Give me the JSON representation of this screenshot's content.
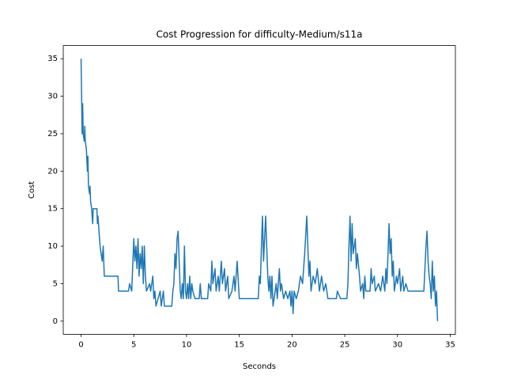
{
  "chart_data": {
    "type": "line",
    "title": "Cost Progression for difficulty-Medium/s11a",
    "x_label": "Seconds",
    "y_label": "Cost",
    "x": [
      0,
      0.05,
      0.1,
      0.15,
      0.2,
      0.3,
      0.35,
      0.4,
      0.5,
      0.6,
      0.65,
      0.7,
      0.8,
      0.85,
      0.9,
      1.0,
      1.1,
      1.15,
      1.5,
      1.55,
      1.6,
      1.7,
      1.8,
      1.9,
      2.0,
      2.1,
      2.2,
      3.5,
      3.55,
      4.5,
      4.6,
      4.8,
      5.0,
      5.1,
      5.2,
      5.3,
      5.4,
      5.5,
      5.6,
      5.7,
      5.8,
      5.9,
      6.0,
      6.1,
      6.2,
      6.5,
      6.6,
      6.8,
      6.9,
      7.0,
      7.1,
      7.5,
      7.6,
      7.8,
      7.9,
      8.6,
      8.7,
      8.8,
      8.9,
      9.0,
      9.1,
      9.2,
      9.3,
      9.4,
      9.5,
      9.6,
      9.7,
      9.8,
      9.9,
      10.0,
      10.1,
      10.2,
      10.3,
      10.4,
      10.5,
      10.6,
      10.8,
      11.2,
      11.3,
      11.4,
      12.0,
      12.1,
      12.3,
      12.4,
      12.5,
      12.7,
      12.8,
      13.0,
      13.1,
      13.3,
      13.4,
      13.6,
      13.7,
      13.9,
      14.0,
      14.3,
      14.5,
      14.6,
      14.8,
      15.0,
      16.8,
      16.9,
      17.0,
      17.1,
      17.2,
      17.3,
      17.5,
      17.6,
      17.7,
      17.8,
      17.9,
      18.0,
      18.1,
      18.2,
      18.4,
      18.5,
      18.6,
      18.8,
      18.9,
      19.0,
      19.2,
      19.4,
      19.6,
      19.8,
      19.9,
      20.0,
      20.1,
      20.2,
      20.4,
      20.6,
      20.8,
      21.0,
      21.2,
      21.4,
      21.5,
      21.6,
      21.7,
      21.8,
      22.0,
      22.2,
      22.4,
      22.6,
      22.8,
      23.0,
      23.2,
      23.4,
      24.2,
      24.3,
      24.6,
      25.2,
      25.3,
      25.4,
      25.5,
      25.6,
      25.7,
      25.8,
      26.0,
      26.1,
      26.2,
      26.4,
      26.5,
      26.7,
      26.8,
      26.9,
      27.0,
      27.4,
      27.5,
      27.6,
      27.8,
      27.9,
      28.2,
      28.4,
      28.6,
      28.8,
      28.9,
      29.0,
      29.2,
      29.3,
      29.4,
      29.5,
      29.6,
      29.7,
      29.9,
      30.0,
      30.2,
      30.3,
      30.5,
      30.6,
      30.8,
      31.0,
      32.5,
      32.6,
      32.7,
      32.8,
      32.9,
      33.0,
      33.1,
      33.2,
      33.3,
      33.4,
      33.5,
      33.6,
      33.7,
      33.8
    ],
    "series": [
      {
        "name": "Cost",
        "color": "#1f77b4",
        "values": [
          35,
          30,
          25,
          29,
          25,
          24,
          26,
          24,
          23,
          20,
          22,
          18,
          17,
          18,
          16,
          15,
          13,
          15,
          15,
          13,
          14,
          12,
          10,
          9,
          8,
          10,
          6,
          6,
          4,
          4,
          5,
          4,
          11,
          8,
          10,
          7,
          11,
          6,
          9,
          7,
          10,
          5,
          10,
          6,
          4,
          5,
          4,
          6,
          3,
          4,
          2,
          4,
          2,
          4,
          2,
          2,
          4,
          5,
          9,
          7,
          11,
          12,
          8,
          4,
          3,
          5,
          3,
          10,
          4,
          3,
          5,
          3,
          6,
          3,
          5,
          4,
          3,
          3,
          5,
          3,
          3,
          5,
          4,
          8,
          5,
          7,
          4,
          6,
          4,
          8,
          5,
          7,
          4,
          6,
          3,
          4,
          6,
          4,
          8,
          3,
          3,
          6,
          5,
          10,
          14,
          8,
          14,
          10,
          6,
          4,
          6,
          3,
          6,
          2,
          4,
          5,
          3,
          7,
          4,
          5,
          3,
          4,
          3,
          4,
          2,
          4,
          1,
          4,
          3,
          4,
          6,
          5,
          9,
          14,
          10,
          6,
          8,
          4,
          6,
          5,
          7,
          4,
          6,
          4,
          5,
          3,
          3,
          4,
          3,
          3,
          5,
          10,
          14,
          8,
          13,
          9,
          11,
          7,
          9,
          6,
          4,
          5,
          3,
          6,
          4,
          4,
          7,
          5,
          6,
          4,
          5,
          4,
          6,
          4,
          7,
          5,
          13,
          9,
          11,
          6,
          8,
          4,
          6,
          5,
          7,
          4,
          6,
          4,
          5,
          4,
          4,
          7,
          10,
          12,
          8,
          6,
          5,
          3,
          8,
          4,
          6,
          2,
          4,
          0
        ]
      }
    ],
    "xlim": [
      -1.69,
      35.49
    ],
    "ylim": [
      -1.75,
      36.75
    ],
    "xticks": [
      0,
      5,
      10,
      15,
      20,
      25,
      30,
      35
    ],
    "yticks": [
      0,
      5,
      10,
      15,
      20,
      25,
      30,
      35
    ]
  }
}
